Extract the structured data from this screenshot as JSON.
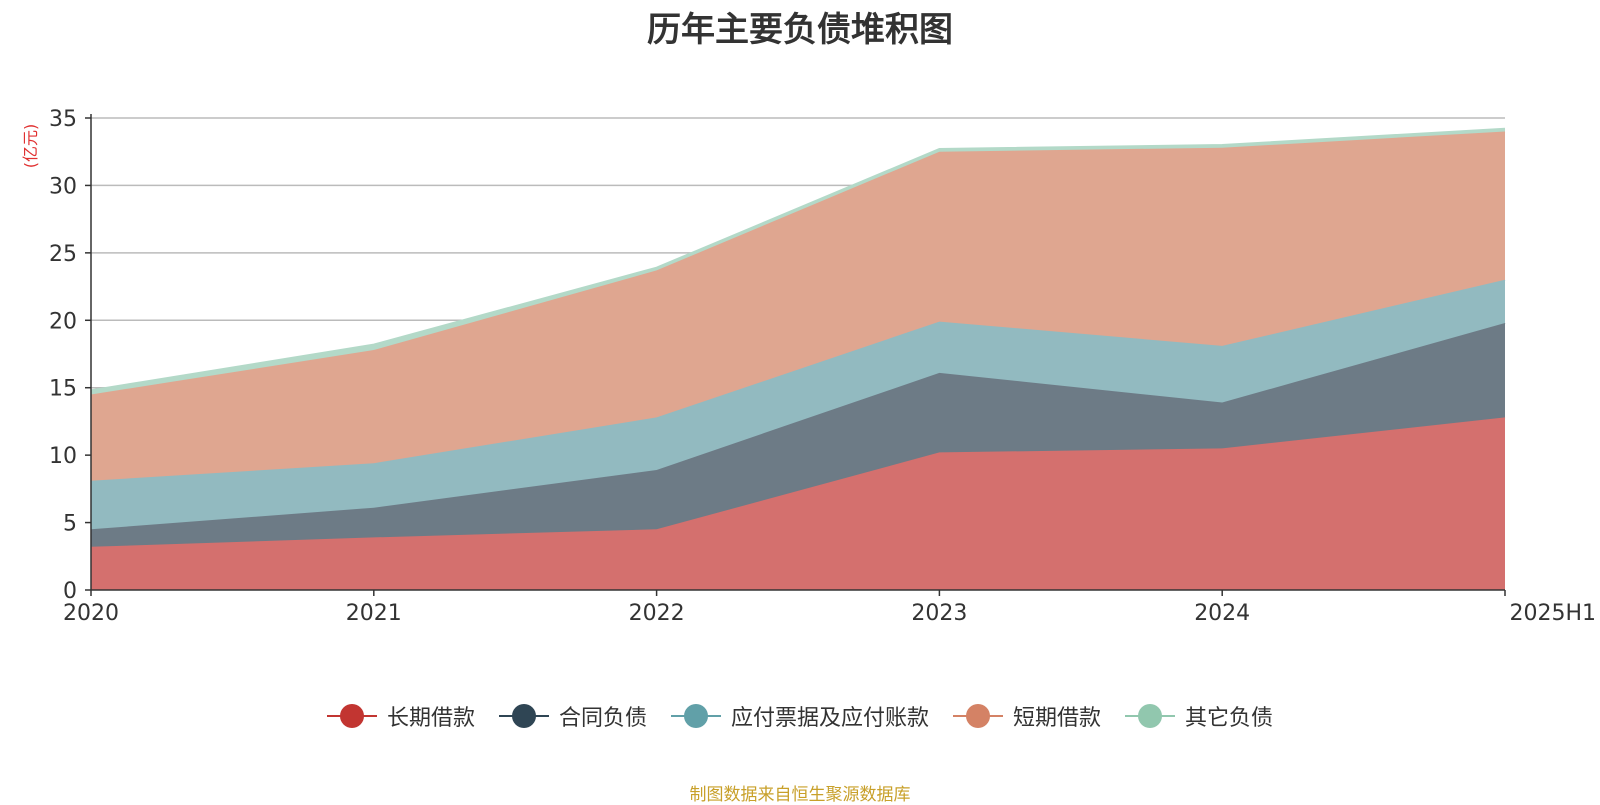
{
  "chart_data": {
    "type": "area",
    "stacked": true,
    "title": "历年主要负债堆积图",
    "ylabel": "(亿元)",
    "xlabel": "",
    "categories": [
      "2020",
      "2021",
      "2022",
      "2023",
      "2024",
      "2025H1"
    ],
    "ylim": [
      0,
      35
    ],
    "yticks": [
      0,
      5,
      10,
      15,
      20,
      25,
      30,
      35
    ],
    "grid": true,
    "legend_position": "bottom",
    "series": [
      {
        "name": "长期借款",
        "color": "#c23531",
        "fill": "#d4706e",
        "values": [
          3.2,
          3.9,
          4.5,
          10.2,
          10.5,
          12.8
        ]
      },
      {
        "name": "合同负债",
        "color": "#2f4554",
        "fill": "#6d7b86",
        "values": [
          1.3,
          2.2,
          4.4,
          5.9,
          3.4,
          7.0
        ]
      },
      {
        "name": "应付票据及应付账款",
        "color": "#61a0a8",
        "fill": "#92bac0",
        "values": [
          3.6,
          3.3,
          3.9,
          3.8,
          4.2,
          3.2
        ]
      },
      {
        "name": "短期借款",
        "color": "#d48265",
        "fill": "#dfa690",
        "values": [
          6.4,
          8.4,
          10.9,
          12.6,
          14.7,
          11.0
        ]
      },
      {
        "name": "其它负债",
        "color": "#91c7ae",
        "fill": "#b3d9c8",
        "values": [
          0.3,
          0.4,
          0.2,
          0.2,
          0.2,
          0.2
        ]
      }
    ],
    "source": "制图数据来自恒生聚源数据库"
  }
}
